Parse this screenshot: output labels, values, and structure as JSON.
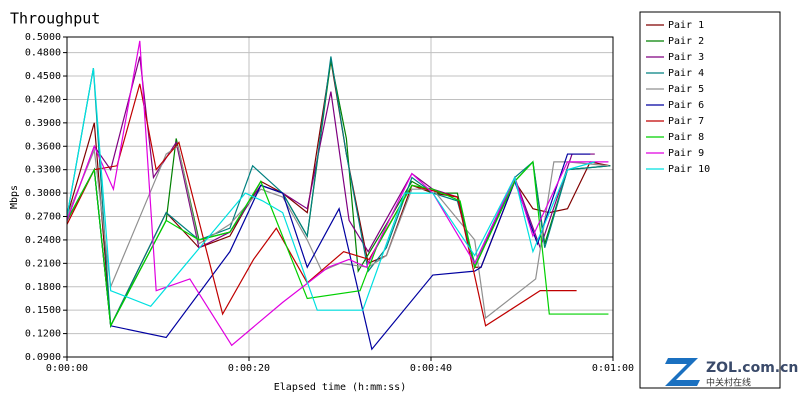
{
  "chart_data": {
    "type": "line",
    "title": "Throughput",
    "xlabel": "Elapsed time (h:mm:ss)",
    "ylabel": "Mbps",
    "xlim": [
      0,
      60
    ],
    "ylim": [
      0.09,
      0.5
    ],
    "xticks": [
      {
        "value": 0,
        "label": "0:00:00"
      },
      {
        "value": 20,
        "label": "0:00:20"
      },
      {
        "value": 40,
        "label": "0:00:40"
      },
      {
        "value": 60,
        "label": "0:01:00"
      }
    ],
    "yticks": [
      {
        "value": 0.09,
        "label": "0.0900"
      },
      {
        "value": 0.12,
        "label": "0.1200"
      },
      {
        "value": 0.15,
        "label": "0.1500"
      },
      {
        "value": 0.18,
        "label": "0.1800"
      },
      {
        "value": 0.21,
        "label": "0.2100"
      },
      {
        "value": 0.24,
        "label": "0.2400"
      },
      {
        "value": 0.27,
        "label": "0.2700"
      },
      {
        "value": 0.3,
        "label": "0.3000"
      },
      {
        "value": 0.33,
        "label": "0.3300"
      },
      {
        "value": 0.36,
        "label": "0.3600"
      },
      {
        "value": 0.39,
        "label": "0.3900"
      },
      {
        "value": 0.42,
        "label": "0.4200"
      },
      {
        "value": 0.45,
        "label": "0.4500"
      },
      {
        "value": 0.48,
        "label": "0.4800"
      },
      {
        "value": 0.5,
        "label": "0.5000"
      }
    ],
    "grid": true,
    "legend": "right",
    "series": [
      {
        "name": "Pair 1",
        "color": "#800000",
        "x": [
          0,
          3,
          4.8,
          10.9,
          14.5,
          17.9,
          21.3,
          23.7,
          26.4,
          29,
          30.7,
          33.1,
          35.1,
          37.9,
          40.2,
          42.9,
          44.8,
          45.5,
          49.2,
          51.2,
          53,
          55,
          57.5,
          59.7
        ],
        "values": [
          0.27,
          0.39,
          0.13,
          0.275,
          0.23,
          0.245,
          0.315,
          0.3,
          0.275,
          0.47,
          0.35,
          0.21,
          0.22,
          0.31,
          0.3,
          0.295,
          0.205,
          0.205,
          0.315,
          0.28,
          0.275,
          0.28,
          0.34,
          0.335
        ]
      },
      {
        "name": "Pair 2",
        "color": "#008000",
        "x": [
          0,
          3,
          4.8,
          10.9,
          12,
          14.5,
          17.9,
          21.3,
          23.7,
          26.4,
          29,
          30.7,
          32,
          35.1,
          37.9,
          40.2,
          42.9,
          44.8,
          49.2,
          51.2,
          52.5,
          55,
          59.7
        ],
        "values": [
          0.265,
          0.33,
          0.13,
          0.265,
          0.37,
          0.24,
          0.25,
          0.31,
          0.3,
          0.245,
          0.47,
          0.37,
          0.2,
          0.26,
          0.315,
          0.3,
          0.3,
          0.205,
          0.315,
          0.34,
          0.235,
          0.33,
          0.335
        ]
      },
      {
        "name": "Pair 3",
        "color": "#800080",
        "x": [
          0,
          3,
          4.8,
          8,
          9.5,
          12,
          14.5,
          17.9,
          21.3,
          23.7,
          26.4,
          29,
          31,
          33.1,
          37.9,
          40.2,
          42.9,
          44.8,
          49.2,
          52,
          55.5,
          58
        ],
        "values": [
          0.265,
          0.36,
          0.33,
          0.475,
          0.32,
          0.365,
          0.23,
          0.25,
          0.31,
          0.3,
          0.28,
          0.43,
          0.265,
          0.225,
          0.325,
          0.305,
          0.295,
          0.205,
          0.32,
          0.23,
          0.35,
          0.35
        ]
      },
      {
        "name": "Pair 4",
        "color": "#008080",
        "x": [
          0,
          2.9,
          4.8,
          10.9,
          14.5,
          17.9,
          20.4,
          23.7,
          26.4,
          29,
          30.7,
          33.1,
          35.1,
          37.9,
          40.2,
          42.9,
          44.8,
          49.2,
          51.2,
          52.5,
          55,
          59.7
        ],
        "values": [
          0.27,
          0.46,
          0.13,
          0.275,
          0.24,
          0.255,
          0.335,
          0.3,
          0.245,
          0.475,
          0.35,
          0.2,
          0.23,
          0.32,
          0.3,
          0.29,
          0.21,
          0.32,
          0.34,
          0.23,
          0.33,
          0.335
        ]
      },
      {
        "name": "Pair 5",
        "color": "#909090",
        "x": [
          0,
          3,
          4.8,
          10.9,
          12.2,
          14.5,
          17.9,
          21.3,
          23.7,
          26.4,
          28,
          30,
          33.1,
          35.1,
          37.9,
          40.2,
          44.8,
          46,
          51.5,
          53.5,
          55,
          59.5
        ],
        "values": [
          0.27,
          0.355,
          0.18,
          0.35,
          0.36,
          0.235,
          0.26,
          0.305,
          0.295,
          0.24,
          0.2,
          0.21,
          0.205,
          0.22,
          0.305,
          0.305,
          0.24,
          0.14,
          0.19,
          0.34,
          0.34,
          0.335
        ]
      },
      {
        "name": "Pair 6",
        "color": "#0000a0",
        "x": [
          0,
          3,
          4.8,
          10.9,
          17.9,
          21.3,
          23.7,
          26.4,
          29.9,
          33.5,
          40.2,
          44.8,
          45.5,
          49.2,
          51.7,
          55,
          57.5
        ],
        "values": [
          0.265,
          0.33,
          0.13,
          0.115,
          0.225,
          0.31,
          0.3,
          0.205,
          0.28,
          0.1,
          0.195,
          0.2,
          0.205,
          0.315,
          0.235,
          0.35,
          0.35
        ]
      },
      {
        "name": "Pair 7",
        "color": "#c00000",
        "x": [
          0,
          3,
          5.5,
          8,
          9.8,
          12.3,
          17.1,
          20.5,
          23,
          26.4,
          30.4,
          33.2,
          37.9,
          42.9,
          46,
          52,
          56
        ],
        "values": [
          0.26,
          0.33,
          0.335,
          0.44,
          0.33,
          0.365,
          0.145,
          0.215,
          0.255,
          0.185,
          0.225,
          0.215,
          0.31,
          0.295,
          0.13,
          0.175,
          0.175
        ]
      },
      {
        "name": "Pair 8",
        "color": "#00d000",
        "x": [
          0,
          3,
          4.8,
          10.9,
          14.5,
          17.9,
          21.3,
          26.4,
          32.2,
          34,
          37.9,
          40.2,
          43.2,
          44.8,
          49.2,
          51.2,
          53,
          55,
          59.5
        ],
        "values": [
          0.265,
          0.33,
          0.13,
          0.265,
          0.24,
          0.25,
          0.315,
          0.165,
          0.175,
          0.23,
          0.31,
          0.305,
          0.29,
          0.205,
          0.315,
          0.34,
          0.145,
          0.145,
          0.145
        ]
      },
      {
        "name": "Pair 9",
        "color": "#e000e0",
        "x": [
          0,
          3,
          5.1,
          8,
          9.8,
          13.5,
          18.1,
          23.7,
          28.7,
          31,
          32.9,
          37.9,
          40.2,
          44.8,
          49.2,
          51.2,
          55,
          59.5
        ],
        "values": [
          0.265,
          0.36,
          0.305,
          0.495,
          0.175,
          0.19,
          0.105,
          0.16,
          0.205,
          0.215,
          0.205,
          0.325,
          0.3,
          0.21,
          0.32,
          0.245,
          0.34,
          0.34
        ]
      },
      {
        "name": "Pair 10",
        "color": "#00e0e0",
        "x": [
          0,
          2.9,
          4.8,
          9.2,
          13.5,
          19.6,
          21.5,
          23.7,
          27.5,
          32.5,
          37.1,
          40.2,
          44.8,
          49.2,
          51.2,
          55,
          58
        ],
        "values": [
          0.27,
          0.46,
          0.175,
          0.155,
          0.215,
          0.3,
          0.29,
          0.275,
          0.15,
          0.15,
          0.3,
          0.3,
          0.22,
          0.32,
          0.225,
          0.33,
          0.34
        ]
      }
    ]
  },
  "watermark": {
    "brand": "ZOL.com.cn",
    "tagline": "中关村在线"
  }
}
